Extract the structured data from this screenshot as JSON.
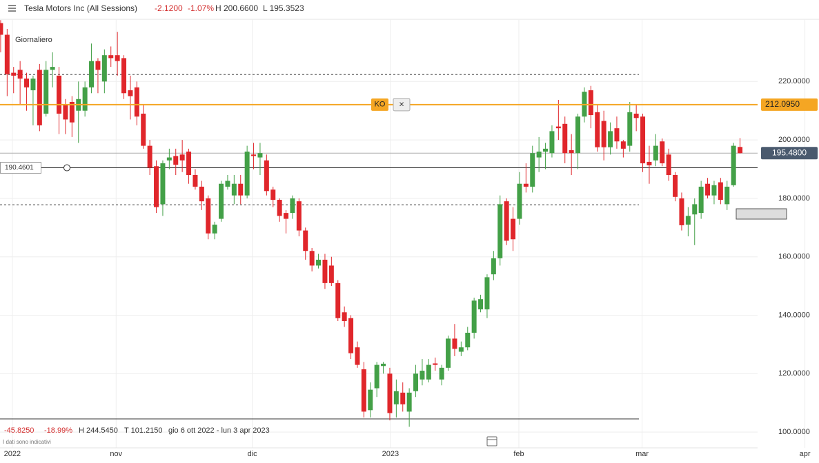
{
  "chart_data": {
    "type": "candlestick",
    "title": "Tesla Motors Inc (All Sessions)",
    "change": "-2.1200",
    "change_pct": "-1.07%",
    "day_high": "H 200.6600",
    "day_low": "L 195.3523",
    "period": "Giornaliero",
    "footer": {
      "change": "-45.8250",
      "change_pct": "-18.99%",
      "high": "H 244.5450",
      "low": "T 101.2150",
      "range": "gio 6 ott 2022 - lun 3 apr 2023",
      "note": "I dati sono indicativi"
    },
    "open": [
      240,
      236,
      223,
      224,
      221,
      217,
      224,
      209,
      224,
      222,
      212,
      213,
      210,
      210,
      218,
      227,
      220,
      229,
      229,
      228,
      217,
      218,
      209,
      198,
      191,
      178,
      193,
      194.5,
      195,
      196,
      188,
      184,
      180,
      168,
      173,
      184,
      181,
      185,
      181,
      195,
      194,
      193,
      183,
      179.5,
      175,
      175,
      179,
      169,
      162,
      157,
      159,
      157,
      151,
      141,
      139,
      129,
      121.5,
      107.5,
      115,
      122.6,
      120,
      109.5,
      113.5,
      107,
      114,
      118,
      118,
      123.5,
      118,
      122,
      132,
      127.5,
      129,
      134,
      142,
      142,
      154,
      159.5,
      179,
      173,
      173,
      185,
      184,
      194,
      196,
      195.5,
      204.6,
      205.5,
      196.5,
      195.5,
      208,
      217,
      209.5,
      206.5,
      197.5,
      204,
      199.5,
      198,
      209,
      208,
      192.5,
      193,
      199.5,
      195,
      188,
      180,
      171,
      174.5,
      175,
      185,
      181,
      185.5,
      178,
      184.5,
      197.6
    ],
    "high": [
      241,
      238,
      225,
      227,
      223,
      222,
      226,
      227,
      230,
      225,
      214,
      215,
      220,
      220,
      233,
      228,
      231,
      232,
      237,
      229,
      222,
      220,
      212,
      200,
      193,
      193,
      197,
      197,
      200,
      197,
      190,
      186,
      181,
      172,
      186,
      188,
      188,
      188,
      198,
      199,
      199,
      195,
      184,
      180,
      176,
      181,
      180,
      170,
      163,
      161,
      161,
      160,
      152,
      143,
      140,
      131,
      124,
      117,
      124,
      124,
      122,
      118,
      117,
      115,
      123,
      125,
      125,
      125.5,
      123,
      133,
      137,
      131,
      136,
      146,
      147,
      154,
      162,
      181,
      180,
      177,
      189,
      192,
      198,
      201,
      199,
      205,
      213.7,
      208,
      202,
      209,
      218,
      218.5,
      212,
      210,
      206,
      208,
      200,
      213,
      212,
      209,
      198,
      202,
      200.5,
      197,
      189,
      182,
      177,
      180,
      186,
      187,
      186,
      187,
      186,
      199,
      200.66
    ],
    "low": [
      230,
      215,
      216,
      212,
      210,
      205,
      203,
      208,
      218,
      202,
      202,
      201,
      199,
      208,
      216,
      216,
      216,
      225,
      222,
      214,
      207,
      205,
      197,
      188,
      175,
      174,
      190,
      188,
      189,
      185,
      183,
      176,
      166,
      166,
      172,
      183,
      178,
      178,
      180,
      190,
      188,
      181,
      177,
      172,
      168,
      173,
      167,
      159,
      155,
      156,
      149,
      150,
      138,
      136,
      125,
      122,
      105,
      105,
      112,
      120,
      104,
      105,
      107,
      101.8,
      112,
      116,
      117,
      121,
      116,
      121,
      126,
      126,
      128,
      132,
      141,
      139,
      152,
      157,
      164,
      162,
      171,
      182,
      182,
      189,
      190,
      194,
      200,
      192,
      188,
      190,
      206,
      204,
      196,
      193,
      195,
      197,
      194,
      196,
      203,
      189,
      185,
      191,
      191,
      186,
      179,
      169,
      167,
      164,
      173,
      180,
      178,
      178,
      176,
      184,
      195.35
    ],
    "close": [
      236,
      222.5,
      222,
      221,
      218,
      221,
      205,
      224,
      225,
      209,
      207,
      206,
      214,
      218,
      227,
      224,
      229,
      228,
      227,
      216,
      215,
      208,
      198,
      190.5,
      177,
      192,
      194,
      191.5,
      193,
      188,
      184,
      179,
      168,
      171,
      185,
      186,
      185,
      181,
      196,
      194.5,
      195.5,
      182.5,
      179.5,
      174,
      173,
      180,
      169,
      162,
      157,
      159,
      151,
      151,
      139,
      138,
      127,
      123,
      107,
      114.5,
      123,
      123.4,
      106.5,
      114,
      109.5,
      113.5,
      120,
      121,
      123,
      123,
      122,
      132,
      128.5,
      129,
      134,
      145,
      145.5,
      153,
      159.5,
      178,
      165.5,
      166,
      185,
      184,
      195.5,
      196,
      197,
      203,
      204,
      195.5,
      195.5,
      208,
      216.5,
      208.5,
      197.5,
      197.5,
      203,
      199.5,
      197,
      209.5,
      207.5,
      192,
      191.3,
      198,
      192,
      188,
      180.5,
      170.8,
      174,
      178,
      184,
      181,
      184.5,
      179.5,
      184,
      198,
      195.48
    ],
    "up_color": "#43a047",
    "down_color": "#e0262b",
    "xlim": [
      -0.1,
      124.1
    ],
    "xticks": [
      {
        "value": 1.8,
        "label": "2022"
      },
      {
        "value": 17.8,
        "label": "nov"
      },
      {
        "value": 38.8,
        "label": "dic"
      },
      {
        "value": 60.1,
        "label": "2023"
      },
      {
        "value": 79.9,
        "label": "feb"
      },
      {
        "value": 98.9,
        "label": "mar"
      },
      {
        "value": 124,
        "label": "apr"
      }
    ],
    "ylim": [
      94.6,
      241.3
    ],
    "yticks": [
      {
        "value": 100,
        "label": "100.0000"
      },
      {
        "value": 120,
        "label": "120.0000"
      },
      {
        "value": 140,
        "label": "140.0000"
      },
      {
        "value": 160,
        "label": "160.0000"
      },
      {
        "value": 180,
        "label": "180.0000"
      },
      {
        "value": 200,
        "label": "200.0000"
      },
      {
        "value": 220,
        "label": "220.0000"
      }
    ],
    "grid": true,
    "levels": [
      {
        "value": 222.4,
        "style": "dashed"
      },
      {
        "value": 177.8,
        "style": "dashed"
      },
      {
        "value": 104.5,
        "style": "solid"
      }
    ],
    "order_line": {
      "value": 212.095,
      "label": "212.0950",
      "color": "#f5a623",
      "tag": "KO",
      "close": "×"
    },
    "last_price": {
      "value": 195.48,
      "label": "195.4800",
      "color": "#4a5a6e"
    },
    "alert_line": {
      "value": 190.4601,
      "label": "190.4601"
    }
  }
}
